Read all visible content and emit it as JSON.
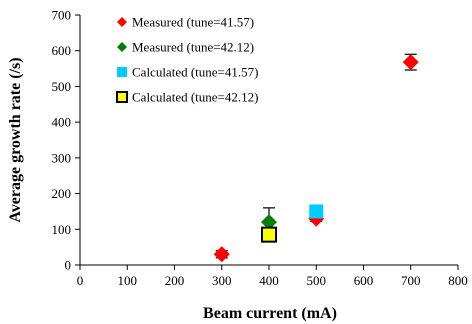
{
  "chart_data": {
    "type": "scatter",
    "xlabel": "Beam current (mA)",
    "ylabel": "Average growth rate (/s)",
    "xlim": [
      0,
      800
    ],
    "ylim": [
      0,
      700
    ],
    "xticks": [
      "0",
      "100",
      "200",
      "300",
      "400",
      "500",
      "600",
      "700",
      "800"
    ],
    "yticks": [
      "0",
      "100",
      "200",
      "300",
      "400",
      "500",
      "600",
      "700"
    ],
    "grid": false,
    "legend_placement": "top-left",
    "series": [
      {
        "name": "Measured (tune=41.57)",
        "marker": "diamond",
        "color": "#ff0000",
        "points": [
          {
            "x": 300,
            "y": 30,
            "err": 10
          },
          {
            "x": 500,
            "y": 130,
            "err": 8
          },
          {
            "x": 700,
            "y": 568,
            "err": 22
          }
        ]
      },
      {
        "name": "Measured (tune=42.12)",
        "marker": "diamond",
        "color": "#008000",
        "points": [
          {
            "x": 400,
            "y": 120,
            "err": 40
          }
        ]
      },
      {
        "name": "Calculated (tune=41.57)",
        "marker": "square",
        "color": "#00ccff",
        "points": [
          {
            "x": 500,
            "y": 150
          }
        ]
      },
      {
        "name": "Calculated (tune=42.12)",
        "marker": "square-outlined",
        "color": "#ffff00",
        "points": [
          {
            "x": 400,
            "y": 85
          }
        ]
      }
    ]
  }
}
